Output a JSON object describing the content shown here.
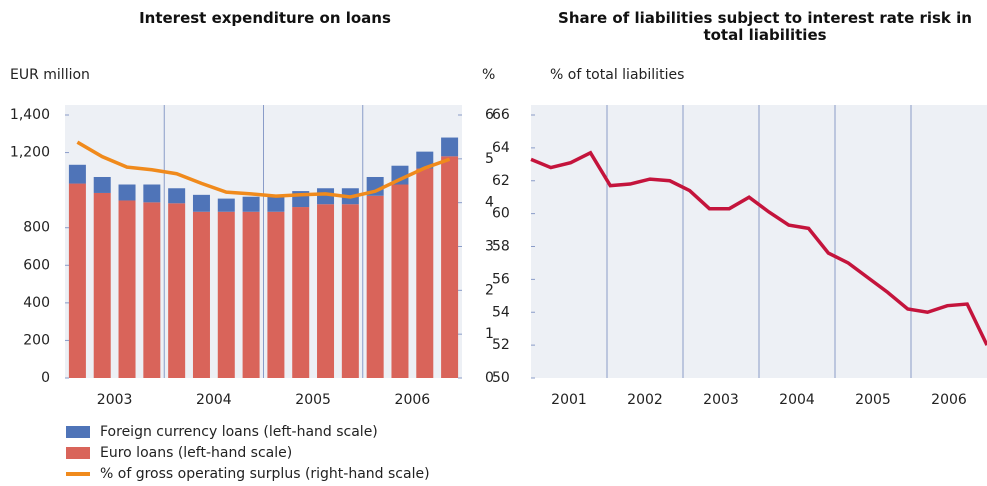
{
  "chart_data": [
    {
      "type": "bar",
      "stacked": true,
      "title": "Interest expenditure on loans",
      "ylabel": "EUR million",
      "y2label": "%",
      "categories": [
        null,
        null,
        null,
        null,
        null,
        null,
        null,
        null,
        null,
        null,
        null,
        null,
        null,
        null,
        null,
        null
      ],
      "groups": [
        "2003",
        "2004",
        "2005",
        "2006"
      ],
      "series": [
        {
          "name": "Foreign currency loans (left-hand scale)",
          "color": "#4f74b8",
          "values": [
            100,
            85,
            85,
            95,
            80,
            90,
            70,
            80,
            80,
            85,
            85,
            85,
            100,
            100,
            90,
            100
          ]
        },
        {
          "name": "Euro loans (left-hand scale)",
          "color": "#d9645a",
          "values": [
            1035,
            985,
            945,
            935,
            930,
            885,
            885,
            885,
            885,
            910,
            925,
            925,
            970,
            1030,
            1115,
            1180
          ]
        },
        {
          "name": "% of gross operating surplus (right-hand scale)",
          "color": "#f08a1c",
          "axis": "y2",
          "type": "line",
          "values": [
            5.38,
            5.05,
            4.81,
            4.75,
            4.66,
            4.44,
            4.24,
            4.2,
            4.15,
            4.18,
            4.2,
            4.13,
            4.26,
            4.53,
            4.79,
            4.99
          ]
        }
      ],
      "ylim": [
        0,
        1400
      ],
      "yticks": [
        {
          "value": 1400,
          "label": "1,400"
        },
        {
          "value": 1200,
          "label": "1,200"
        },
        800,
        600,
        400,
        200,
        0
      ],
      "y2lim": [
        0,
        6
      ],
      "y2ticks": [
        0,
        1,
        2,
        3,
        4,
        5,
        6
      ]
    },
    {
      "type": "line",
      "title": "Share of liabilities subject to interest rate risk in total liabilities",
      "ylabel": "% of total liabilities",
      "categories": [
        null,
        null,
        null,
        null,
        null,
        null,
        null,
        null,
        null,
        null,
        null,
        null,
        null,
        null,
        null,
        null,
        null,
        null,
        null,
        null,
        null,
        null,
        null,
        null
      ],
      "groups": [
        "2001",
        "2002",
        "2003",
        "2004",
        "2005",
        "2006"
      ],
      "series": [
        {
          "name": null,
          "color": "#c4143c",
          "values": [
            63.3,
            62.8,
            63.1,
            63.7,
            61.7,
            61.8,
            62.1,
            62.0,
            61.4,
            60.3,
            60.3,
            61.0,
            60.1,
            59.3,
            59.1,
            57.6,
            57.0,
            56.1,
            55.2,
            54.2,
            54.0,
            54.4,
            54.5,
            52.0
          ]
        }
      ],
      "ylim": [
        50,
        66
      ],
      "yticks": [
        50,
        52,
        54,
        56,
        58,
        60,
        62,
        64,
        66
      ]
    }
  ]
}
